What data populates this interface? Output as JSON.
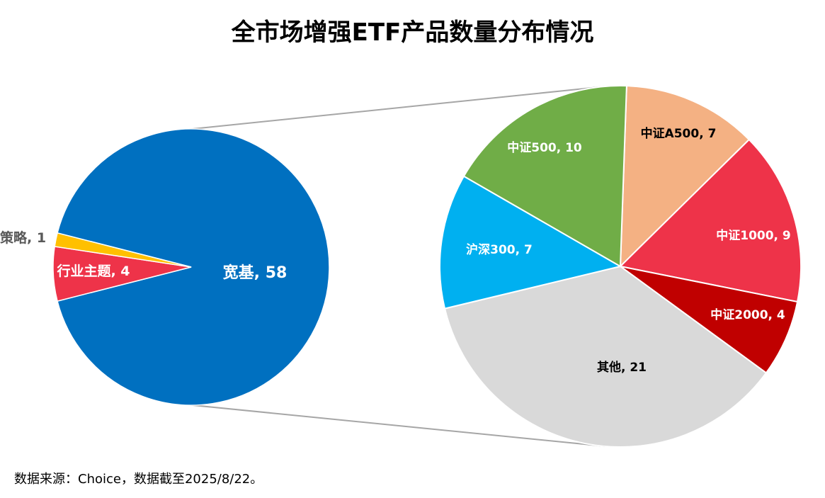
{
  "chart_data": {
    "type": "pie",
    "title": "全市场增强ETF产品数量分布情况",
    "main_pie": {
      "slices": [
        {
          "name": "宽基",
          "value": 58,
          "color": "#0070C0",
          "label": "宽基, 58",
          "label_color": "#ffffff"
        },
        {
          "name": "行业主题",
          "value": 4,
          "color": "#EE3349",
          "label": "行业主题, 4",
          "label_color": "#ffffff"
        },
        {
          "name": "策略",
          "value": 1,
          "color": "#FFC000",
          "label": "策略, 1",
          "label_color": "#595959"
        }
      ]
    },
    "breakdown_pie": {
      "of": "宽基",
      "slices": [
        {
          "name": "中证A500",
          "value": 7,
          "color": "#F4B183",
          "label": "中证A500, 7",
          "label_color": "#000000"
        },
        {
          "name": "中证1000",
          "value": 9,
          "color": "#EE3349",
          "label": "中证1000, 9",
          "label_color": "#ffffff"
        },
        {
          "name": "中证2000",
          "value": 4,
          "color": "#C00000",
          "label": "中证2000, 4",
          "label_color": "#ffffff"
        },
        {
          "name": "其他",
          "value": 21,
          "color": "#D9D9D9",
          "label": "其他, 21",
          "label_color": "#000000"
        },
        {
          "name": "沪深300",
          "value": 7,
          "color": "#00B0F0",
          "label": "沪深300, 7",
          "label_color": "#ffffff"
        },
        {
          "name": "中证500",
          "value": 10,
          "color": "#70AD47",
          "label": "中证500, 10",
          "label_color": "#ffffff"
        }
      ]
    }
  },
  "footer": {
    "source": "数据来源：Choice，数据截至2025/8/22。"
  }
}
